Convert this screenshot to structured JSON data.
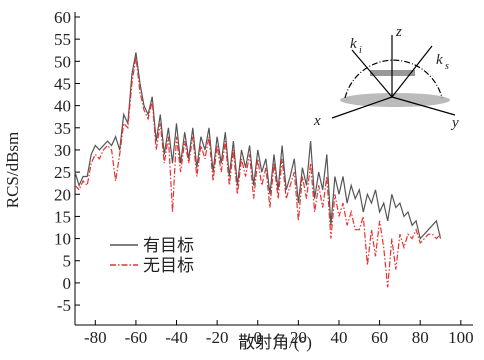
{
  "chart_data": {
    "type": "line",
    "xlabel": "散射角/(°)",
    "ylabel": "RCS/dBsm",
    "x": [
      -90,
      -88,
      -86,
      -84,
      -82,
      -80,
      -78,
      -76,
      -74,
      -72,
      -70,
      -68,
      -66,
      -64,
      -62,
      -60,
      -58,
      -56,
      -54,
      -52,
      -50,
      -48,
      -46,
      -44,
      -42,
      -40,
      -38,
      -36,
      -34,
      -32,
      -30,
      -28,
      -26,
      -24,
      -22,
      -20,
      -18,
      -16,
      -14,
      -12,
      -10,
      -8,
      -6,
      -4,
      -2,
      0,
      2,
      4,
      6,
      8,
      10,
      12,
      14,
      16,
      18,
      20,
      22,
      24,
      26,
      28,
      30,
      32,
      34,
      36,
      38,
      40,
      42,
      44,
      46,
      48,
      50,
      52,
      54,
      56,
      58,
      60,
      62,
      64,
      66,
      68,
      70,
      72,
      74,
      76,
      78,
      80,
      82,
      84,
      86,
      88,
      90
    ],
    "series": [
      {
        "name": "有目标",
        "color": "#555555",
        "style": "solid",
        "values": [
          25,
          22,
          24,
          24,
          29,
          31,
          30,
          31,
          32,
          31,
          33,
          30,
          38,
          36,
          47,
          52,
          45,
          40,
          38,
          42,
          32,
          38,
          29,
          35,
          27,
          36,
          27,
          34,
          28,
          35,
          26,
          33,
          30,
          35,
          25,
          33,
          27,
          34,
          24,
          32,
          22,
          30,
          26,
          31,
          22,
          30,
          25,
          28,
          20,
          29,
          21,
          31,
          21,
          24,
          28,
          18,
          26,
          22,
          32,
          19,
          25,
          21,
          29,
          13,
          24,
          20,
          24,
          18,
          22,
          19,
          21,
          16,
          20,
          18,
          21,
          16,
          18,
          14,
          20,
          17,
          18,
          15,
          16,
          13,
          14,
          10,
          11,
          12,
          13,
          14,
          10
        ]
      },
      {
        "name": "无目标",
        "color": "#e8312f",
        "style": "dashdot",
        "values": [
          22,
          21,
          23,
          22,
          27,
          29,
          28,
          30,
          31,
          30,
          23,
          29,
          36,
          35,
          45,
          51,
          43,
          39,
          37,
          41,
          30,
          36,
          27,
          33,
          16,
          33,
          25,
          32,
          27,
          33,
          24,
          31,
          28,
          33,
          23,
          31,
          25,
          32,
          22,
          30,
          20,
          28,
          24,
          29,
          19,
          28,
          22,
          26,
          17,
          27,
          19,
          28,
          19,
          22,
          25,
          14,
          24,
          19,
          27,
          16,
          22,
          17,
          24,
          10,
          20,
          15,
          18,
          13,
          16,
          12,
          12,
          15,
          4,
          12,
          6,
          14,
          8,
          -1,
          10,
          3,
          11,
          8,
          11,
          10,
          12,
          9,
          10,
          11,
          11,
          10,
          11
        ]
      }
    ],
    "xlim": [
      -90,
      106
    ],
    "xticks": [
      -80,
      -60,
      -40,
      -20,
      0,
      20,
      40,
      60,
      80,
      100
    ],
    "ylim": [
      -9.5,
      60
    ],
    "yticks": [
      -5,
      0,
      5,
      10,
      15,
      20,
      25,
      30,
      35,
      40,
      45,
      50,
      55,
      60
    ],
    "legend": "lower-left",
    "inset_labels": {
      "ki": "k",
      "ki_sub": "i",
      "z": "z",
      "ks": "k",
      "ks_sub": "s",
      "x": "x",
      "y": "y"
    }
  }
}
